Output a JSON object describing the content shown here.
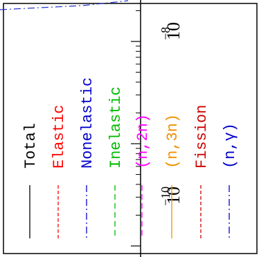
{
  "chart_data": {
    "type": "line",
    "orientation": "rotated-90",
    "y_scale": "log",
    "grid": false,
    "legend_placement": "inside",
    "tick_labels": [
      {
        "base": "10",
        "exponent": "−8"
      },
      {
        "base": "10",
        "exponent": "−10"
      }
    ],
    "series": [
      {
        "name": "Total",
        "color": "#000000",
        "line_style": "solid"
      },
      {
        "name": "Elastic",
        "color": "#ff0000",
        "line_style": "dashed"
      },
      {
        "name": "Nonelastic",
        "color": "#0000cc",
        "line_style": "dash-dot"
      },
      {
        "name": "Inelastic",
        "color": "#00bb00",
        "line_style": "long-dash"
      },
      {
        "name": "(n,2n)",
        "color": "#ff00ff",
        "line_style": "long-dash"
      },
      {
        "name": "(n,3n)",
        "color": "#ee9000",
        "line_style": "solid"
      },
      {
        "name": "Fission",
        "color": "#cc0000",
        "line_style": "dashed"
      },
      {
        "name": "(n,γ)",
        "color": "#0000cc",
        "line_style": "dash-dot"
      }
    ]
  }
}
